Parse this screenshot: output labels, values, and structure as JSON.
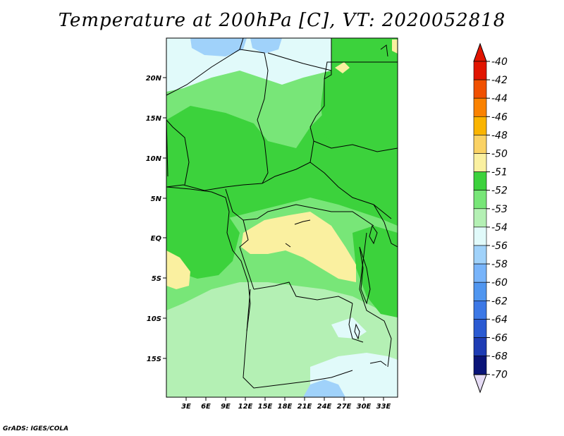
{
  "title": "Temperature at 200hPa [C], VT: 2020052818",
  "credit": "GrADS: IGES/COLA",
  "map": {
    "lat_labels": [
      "20N",
      "15N",
      "10N",
      "5N",
      "EQ",
      "5S",
      "10S",
      "15S"
    ],
    "lon_labels": [
      "3E",
      "6E",
      "9E",
      "12E",
      "15E",
      "18E",
      "21E",
      "24E",
      "27E",
      "30E",
      "33E"
    ],
    "fills": {
      "dark_green": "#3cd23c",
      "mid_green": "#78e678",
      "light_green": "#b4f0b4",
      "pale_cyan": "#e1fafa",
      "light_blue": "#a0d2fa",
      "pale_yellow": "#faf0a0"
    }
  },
  "colorbar": {
    "labels": [
      "-40",
      "-42",
      "-44",
      "-46",
      "-48",
      "-50",
      "-51",
      "-52",
      "-53",
      "-54",
      "-56",
      "-58",
      "-60",
      "-62",
      "-64",
      "-66",
      "-68",
      "-70"
    ],
    "colors": [
      "#e11400",
      "#f05000",
      "#fa8200",
      "#fab400",
      "#fad264",
      "#faf0a0",
      "#3cd23c",
      "#78e678",
      "#b4f0b4",
      "#e1fafa",
      "#a0d2fa",
      "#78b4fa",
      "#5096f0",
      "#3c78e6",
      "#2a5ad2",
      "#1e3cb4",
      "#0a1478"
    ],
    "top_arrow_color": "#e11400",
    "bottom_arrow_color": "#e6dcf5"
  }
}
